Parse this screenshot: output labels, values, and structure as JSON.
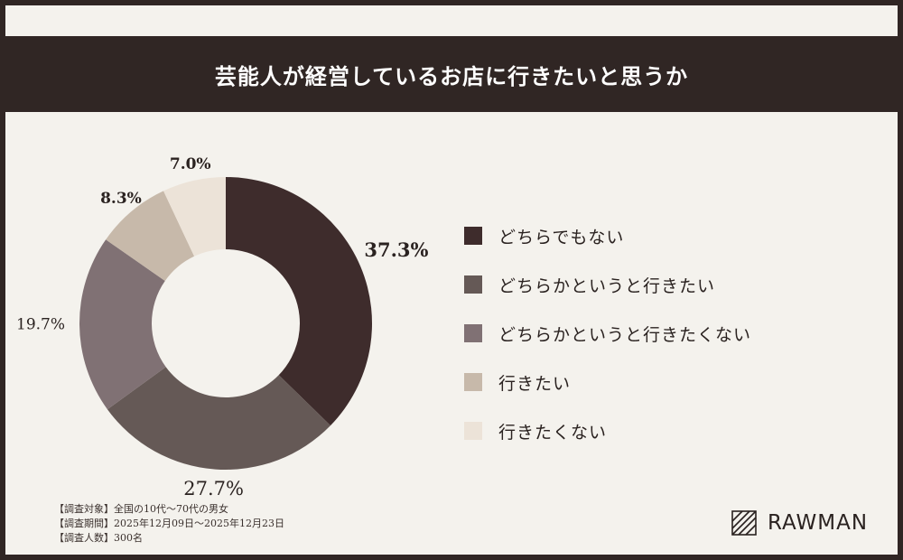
{
  "title": "芸能人が経営しているお店に行きたいと思うか",
  "chart_data": {
    "type": "pie",
    "donut": true,
    "unit": "%",
    "legend_position": "right",
    "categories": [
      "どちらでもない",
      "どちらかというと行きたい",
      "どちらかというと行きたくない",
      "行きたい",
      "行きたくない"
    ],
    "values": [
      37.3,
      27.7,
      19.7,
      8.3,
      7.0
    ],
    "labels": [
      "37.3%",
      "27.7%",
      "19.7%",
      "8.3%",
      "7.0%"
    ],
    "colors": [
      "#3e2c2c",
      "#655956",
      "#807174",
      "#c7b9aa",
      "#ece3d8"
    ]
  },
  "footnote": {
    "target": "【調査対象】全国の10代〜70代の男女",
    "period": "【調査期間】2025年12月09日〜2025年12月23日",
    "count": "【調査人数】300名"
  },
  "brand": {
    "name": "RAWMAN"
  }
}
